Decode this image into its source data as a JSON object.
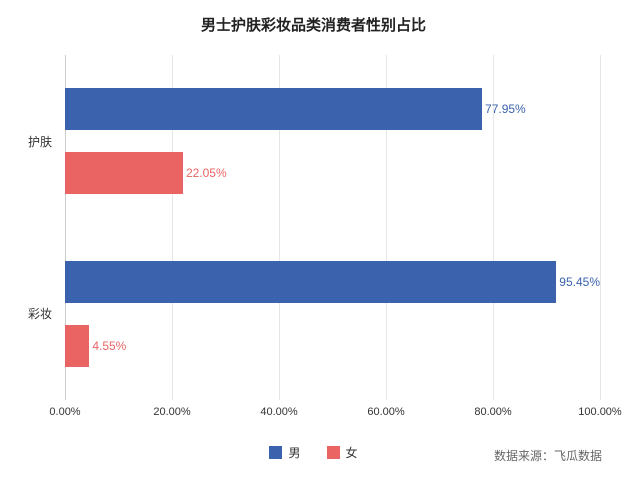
{
  "title": "男士护肤彩妆品类消费者性别占比",
  "source": "数据来源：飞瓜数据",
  "chart_data": {
    "type": "bar",
    "orientation": "horizontal",
    "title": "男士护肤彩妆品类消费者性别占比",
    "categories": [
      "护肤",
      "彩妆"
    ],
    "series": [
      {
        "name": "男",
        "color": "#3a62ad",
        "values": [
          77.95,
          95.45
        ]
      },
      {
        "name": "女",
        "color": "#ea6464",
        "values": [
          22.05,
          4.55
        ]
      }
    ],
    "x_ticks": [
      "0.00%",
      "20.00%",
      "40.00%",
      "60.00%",
      "80.00%",
      "100.00%"
    ],
    "xlim": [
      0,
      100
    ],
    "grid": true,
    "legend_position": "bottom",
    "data_label_format": "percent",
    "annotation": "数据来源：飞瓜数据"
  }
}
